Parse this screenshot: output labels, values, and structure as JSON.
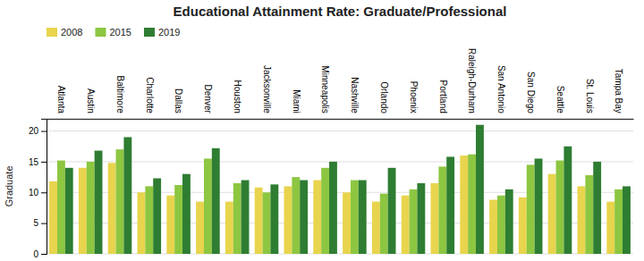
{
  "chart_data": {
    "type": "bar",
    "title": "Educational Attainment Rate: Graduate/Professional",
    "ylabel": "Graduate",
    "categories": [
      "Atlanta",
      "Austin",
      "Baltimore",
      "Charlotte",
      "Dallas",
      "Denver",
      "Houston",
      "Jacksonville",
      "Miami",
      "Minneapolis",
      "Nashville",
      "Orlando",
      "Phoenix",
      "Portland",
      "Raleigh-Durham",
      "San Antonio",
      "San Diego",
      "Seattle",
      "St. Louis",
      "Tampa Bay"
    ],
    "series": [
      {
        "name": "2008",
        "color": "#E8D44D",
        "values": [
          11.8,
          14.0,
          14.8,
          10.0,
          9.5,
          8.5,
          8.5,
          10.8,
          11.0,
          12.0,
          10.0,
          8.5,
          9.5,
          11.5,
          16.0,
          8.8,
          9.2,
          13.0,
          11.0,
          8.5
        ]
      },
      {
        "name": "2015",
        "color": "#8DC641",
        "values": [
          15.2,
          15.0,
          17.0,
          11.0,
          11.2,
          15.5,
          11.5,
          10.0,
          12.5,
          14.0,
          12.0,
          9.8,
          10.5,
          14.2,
          16.2,
          9.5,
          14.5,
          15.2,
          12.8,
          10.5
        ]
      },
      {
        "name": "2019",
        "color": "#2E7D32",
        "values": [
          14.0,
          16.8,
          19.0,
          12.3,
          13.0,
          17.2,
          12.0,
          11.3,
          12.0,
          15.0,
          12.0,
          14.0,
          11.5,
          15.8,
          21.0,
          10.5,
          15.5,
          17.5,
          15.0,
          11.0
        ]
      }
    ],
    "ylim": [
      0,
      22
    ],
    "yticks": [
      0,
      5,
      10,
      15,
      20
    ],
    "grid": true,
    "legend": "upper left"
  }
}
